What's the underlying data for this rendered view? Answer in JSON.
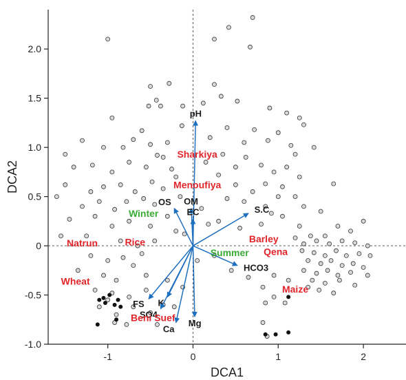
{
  "chart_data": {
    "type": "scatter",
    "title": "",
    "xlabel": "DCA1",
    "ylabel": "DCA2",
    "xlim": [
      -1.7,
      2.5
    ],
    "ylim": [
      -1.0,
      2.4
    ],
    "xticks": [
      -1,
      0,
      1,
      2
    ],
    "yticks": [
      -1.0,
      -0.5,
      0,
      0.5,
      1.0,
      1.5,
      2.0
    ],
    "xtick_labels": [
      "-1",
      "0",
      "1",
      "2"
    ],
    "ytick_labels": [
      "-1.0",
      "-0.5",
      "0",
      "0.5",
      "1.0",
      "1.5",
      "2.0"
    ],
    "grid": false,
    "colors": {
      "open_point_fill": "#d9d9d9",
      "solid_point_fill": "#111111",
      "vector": "#1f6fbf",
      "location_label": "#e0262b",
      "season_label": "#3aaa35",
      "variable_label": "#1a1a1a"
    },
    "vectors": [
      {
        "name": "pH",
        "x": 0.03,
        "y": 1.27
      },
      {
        "name": "OS",
        "x": -0.22,
        "y": 0.38
      },
      {
        "name": "OM",
        "x": -0.02,
        "y": 0.38
      },
      {
        "name": "EC",
        "x": 0.0,
        "y": 0.27
      },
      {
        "name": "S.C",
        "x": 0.65,
        "y": 0.33
      },
      {
        "name": "HCO3",
        "x": 0.52,
        "y": -0.2
      },
      {
        "name": "K",
        "x": -0.3,
        "y": -0.52
      },
      {
        "name": "FS",
        "x": -0.52,
        "y": -0.54
      },
      {
        "name": "SO4",
        "x": -0.38,
        "y": -0.64
      },
      {
        "name": "Ca",
        "x": -0.2,
        "y": -0.78
      },
      {
        "name": "Mg",
        "x": 0.02,
        "y": -0.72
      }
    ],
    "location_labels": [
      {
        "name": "Sharkiya",
        "x": 0.05,
        "y": 0.93
      },
      {
        "name": "Menoufiya",
        "x": 0.05,
        "y": 0.62
      },
      {
        "name": "Rice",
        "x": -0.68,
        "y": 0.04
      },
      {
        "name": "Natrun",
        "x": -1.3,
        "y": 0.03
      },
      {
        "name": "Barley",
        "x": 0.83,
        "y": 0.07
      },
      {
        "name": "Qena",
        "x": 0.97,
        "y": -0.06
      },
      {
        "name": "Wheat",
        "x": -1.38,
        "y": -0.36
      },
      {
        "name": "Beni Suef",
        "x": -0.47,
        "y": -0.73
      },
      {
        "name": "Maize",
        "x": 1.2,
        "y": -0.44
      }
    ],
    "season_labels": [
      {
        "name": "Winter",
        "x": -0.58,
        "y": 0.33
      },
      {
        "name": "Summer",
        "x": 0.43,
        "y": -0.07
      }
    ],
    "open_points": [
      [
        -1.0,
        2.1
      ],
      [
        0.25,
        2.1
      ],
      [
        0.42,
        2.22
      ],
      [
        0.7,
        2.32
      ],
      [
        0.67,
        2.02
      ],
      [
        -0.5,
        1.62
      ],
      [
        -0.28,
        1.65
      ],
      [
        -0.43,
        1.48
      ],
      [
        0.25,
        1.64
      ],
      [
        0.33,
        1.52
      ],
      [
        -0.95,
        1.3
      ],
      [
        -0.52,
        1.42
      ],
      [
        -0.38,
        1.42
      ],
      [
        -0.12,
        1.42
      ],
      [
        0.12,
        1.45
      ],
      [
        0.52,
        1.47
      ],
      [
        0.9,
        1.4
      ],
      [
        1.25,
        1.3
      ],
      [
        1.3,
        1.23
      ],
      [
        1.1,
        1.35
      ],
      [
        -1.3,
        1.07
      ],
      [
        -1.5,
        0.93
      ],
      [
        -1.05,
        1.0
      ],
      [
        -0.82,
        1.0
      ],
      [
        -0.7,
        1.08
      ],
      [
        -0.6,
        1.17
      ],
      [
        -0.5,
        1.03
      ],
      [
        -0.3,
        1.05
      ],
      [
        -0.13,
        1.22
      ],
      [
        0.2,
        1.1
      ],
      [
        0.4,
        1.2
      ],
      [
        0.6,
        1.05
      ],
      [
        0.72,
        1.18
      ],
      [
        0.88,
        1.07
      ],
      [
        1.0,
        1.15
      ],
      [
        1.15,
        1.02
      ],
      [
        1.2,
        0.93
      ],
      [
        1.42,
        1.0
      ],
      [
        -1.4,
        0.8
      ],
      [
        -1.18,
        0.82
      ],
      [
        -0.95,
        0.75
      ],
      [
        -0.75,
        0.85
      ],
      [
        -0.55,
        0.8
      ],
      [
        -0.35,
        0.9
      ],
      [
        -0.25,
        0.78
      ],
      [
        0.15,
        0.85
      ],
      [
        0.35,
        0.93
      ],
      [
        0.5,
        0.8
      ],
      [
        0.62,
        0.9
      ],
      [
        0.8,
        0.82
      ],
      [
        0.95,
        0.75
      ],
      [
        1.1,
        0.8
      ],
      [
        1.25,
        0.7
      ],
      [
        -1.5,
        0.62
      ],
      [
        -1.2,
        0.55
      ],
      [
        -1.05,
        0.6
      ],
      [
        -0.85,
        0.62
      ],
      [
        -0.68,
        0.55
      ],
      [
        -0.48,
        0.65
      ],
      [
        -0.35,
        0.58
      ],
      [
        -0.2,
        0.7
      ],
      [
        0.3,
        0.72
      ],
      [
        0.5,
        0.62
      ],
      [
        0.7,
        0.55
      ],
      [
        0.85,
        0.63
      ],
      [
        1.05,
        0.6
      ],
      [
        1.2,
        0.5
      ],
      [
        1.65,
        0.63
      ],
      [
        -1.6,
        0.5
      ],
      [
        -1.3,
        0.4
      ],
      [
        -1.1,
        0.45
      ],
      [
        -0.92,
        0.37
      ],
      [
        -0.78,
        0.45
      ],
      [
        -0.58,
        0.48
      ],
      [
        -0.45,
        0.42
      ],
      [
        -0.3,
        0.3
      ],
      [
        -0.15,
        0.5
      ],
      [
        0.4,
        0.48
      ],
      [
        0.6,
        0.45
      ],
      [
        0.85,
        0.4
      ],
      [
        1.0,
        0.5
      ],
      [
        1.3,
        0.4
      ],
      [
        1.5,
        0.35
      ],
      [
        -1.45,
        0.27
      ],
      [
        -1.15,
        0.3
      ],
      [
        -0.95,
        0.2
      ],
      [
        -0.75,
        0.25
      ],
      [
        -0.5,
        0.2
      ],
      [
        -0.2,
        0.15
      ],
      [
        0.3,
        0.25
      ],
      [
        0.55,
        0.18
      ],
      [
        0.8,
        0.22
      ],
      [
        1.05,
        0.3
      ],
      [
        1.25,
        0.2
      ],
      [
        1.38,
        0.1
      ],
      [
        1.55,
        0.1
      ],
      [
        1.7,
        0.2
      ],
      [
        1.85,
        0.15
      ],
      [
        2.0,
        0.25
      ],
      [
        1.2,
        0.08
      ],
      [
        -1.55,
        0.1
      ],
      [
        -1.25,
        0.1
      ],
      [
        -0.85,
        0.05
      ],
      [
        -0.65,
        0.0
      ],
      [
        -0.45,
        0.05
      ],
      [
        1.3,
        0.02
      ],
      [
        1.45,
        0.05
      ],
      [
        1.6,
        0.02
      ],
      [
        1.75,
        0.05
      ],
      [
        1.9,
        0.03
      ],
      [
        2.05,
        0.0
      ],
      [
        1.28,
        -0.05
      ],
      [
        1.42,
        -0.07
      ],
      [
        1.55,
        -0.1
      ],
      [
        1.68,
        -0.05
      ],
      [
        1.8,
        -0.1
      ],
      [
        1.95,
        -0.08
      ],
      [
        2.08,
        -0.1
      ],
      [
        1.35,
        -0.15
      ],
      [
        1.5,
        -0.18
      ],
      [
        1.62,
        -0.15
      ],
      [
        1.75,
        -0.2
      ],
      [
        1.88,
        -0.18
      ],
      [
        2.0,
        -0.22
      ],
      [
        1.3,
        -0.25
      ],
      [
        1.45,
        -0.28
      ],
      [
        1.58,
        -0.25
      ],
      [
        1.7,
        -0.3
      ],
      [
        1.85,
        -0.27
      ],
      [
        2.05,
        -0.3
      ],
      [
        1.4,
        -0.35
      ],
      [
        1.55,
        -0.38
      ],
      [
        1.72,
        -0.35
      ],
      [
        1.9,
        -0.4
      ],
      [
        1.48,
        -0.45
      ],
      [
        1.65,
        -0.48
      ],
      [
        1.35,
        -0.42
      ],
      [
        1.12,
        -0.35
      ],
      [
        0.95,
        -0.3
      ],
      [
        -1.2,
        -0.1
      ],
      [
        -1.0,
        -0.15
      ],
      [
        -0.82,
        -0.12
      ],
      [
        -0.6,
        -0.08
      ],
      [
        -1.35,
        -0.25
      ],
      [
        -1.05,
        -0.3
      ],
      [
        -0.9,
        -0.35
      ],
      [
        -0.7,
        -0.2
      ],
      [
        -0.55,
        -0.3
      ],
      [
        -1.15,
        -0.45
      ],
      [
        -0.95,
        -0.48
      ],
      [
        -1.0,
        -0.55
      ],
      [
        -0.75,
        -0.52
      ],
      [
        -0.55,
        -0.45
      ],
      [
        -0.3,
        -0.35
      ],
      [
        -0.35,
        -0.6
      ],
      [
        -1.1,
        -0.62
      ],
      [
        -0.9,
        -0.7
      ],
      [
        -0.7,
        -0.62
      ],
      [
        -0.5,
        -0.68
      ],
      [
        -0.92,
        -0.78
      ],
      [
        -0.78,
        -0.8
      ],
      [
        -0.42,
        -0.8
      ],
      [
        -0.22,
        -0.62
      ],
      [
        -0.12,
        -0.42
      ],
      [
        0.05,
        -0.15
      ],
      [
        0.25,
        -0.1
      ],
      [
        0.45,
        -0.25
      ],
      [
        0.65,
        -0.32
      ],
      [
        0.82,
        -0.42
      ],
      [
        0.95,
        -0.52
      ],
      [
        0.85,
        -0.58
      ],
      [
        1.08,
        -0.58
      ],
      [
        0.82,
        -0.78
      ],
      [
        0.87,
        -0.92
      ],
      [
        -0.42,
        0.92
      ],
      [
        0.1,
        0.38
      ],
      [
        0.18,
        0.22
      ],
      [
        -0.1,
        0.12
      ],
      [
        0.92,
        0.33
      ]
    ],
    "solid_points": [
      [
        -1.1,
        -0.55
      ],
      [
        -1.05,
        -0.53
      ],
      [
        -0.98,
        -0.5
      ],
      [
        -1.03,
        -0.58
      ],
      [
        -0.88,
        -0.55
      ],
      [
        -0.92,
        -0.6
      ],
      [
        -0.85,
        -0.62
      ],
      [
        -1.12,
        -0.8
      ],
      [
        -0.9,
        -0.75
      ],
      [
        0.85,
        -0.9
      ],
      [
        0.97,
        -0.9
      ],
      [
        1.12,
        -0.88
      ],
      [
        1.12,
        -0.52
      ]
    ]
  }
}
